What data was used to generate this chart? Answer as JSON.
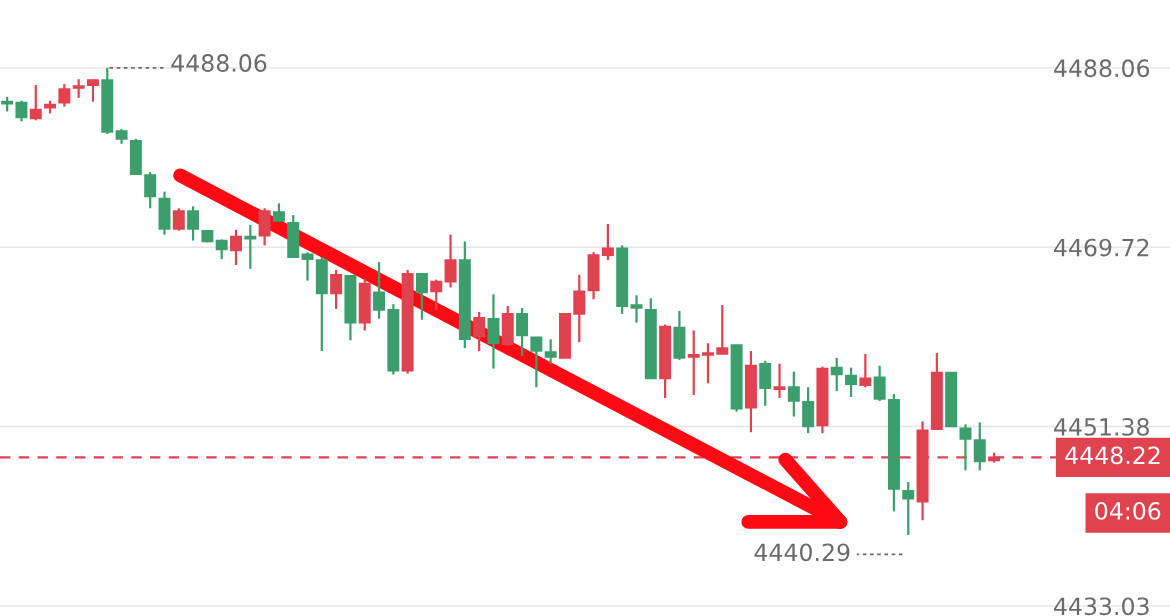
{
  "chart_data": {
    "type": "candlestick",
    "categories": [
      null,
      null,
      null,
      null,
      null,
      null,
      null,
      null,
      null,
      null,
      null,
      null,
      null,
      null,
      null,
      null,
      null,
      null,
      null,
      null,
      null,
      null,
      null,
      null,
      null,
      null,
      null,
      null,
      null,
      null,
      null,
      null,
      null,
      null,
      null,
      null,
      null,
      null,
      null,
      null,
      null,
      null,
      null,
      null,
      null,
      null,
      null,
      null,
      null,
      null,
      null,
      null,
      null,
      null,
      null,
      null,
      null,
      null,
      null,
      null,
      null,
      null,
      null,
      null,
      null,
      null,
      null,
      null,
      null,
      null
    ],
    "ohlc": [
      [
        4484.6,
        4485.1,
        4483.6,
        4484.4
      ],
      [
        4484.5,
        4484.7,
        4482.6,
        4483.0
      ],
      [
        4482.9,
        4486.3,
        4482.7,
        4483.8
      ],
      [
        4484.0,
        4484.7,
        4483.4,
        4484.3
      ],
      [
        4484.5,
        4486.4,
        4484.1,
        4485.9
      ],
      [
        4486.0,
        4486.9,
        4485.0,
        4486.2
      ],
      [
        4486.3,
        4486.8,
        4484.6,
        4486.8
      ],
      [
        4486.8,
        4488.06,
        4481.3,
        4481.5
      ],
      [
        4481.6,
        4481.8,
        4480.3,
        4480.8
      ],
      [
        4480.6,
        4480.8,
        4477.2,
        4477.2
      ],
      [
        4477.1,
        4477.4,
        4473.7,
        4474.9
      ],
      [
        4474.7,
        4475.4,
        4471.0,
        4471.6
      ],
      [
        4471.6,
        4473.7,
        4471.4,
        4473.4
      ],
      [
        4473.4,
        4473.9,
        4470.4,
        4471.6
      ],
      [
        4471.4,
        4471.4,
        4470.2,
        4470.3
      ],
      [
        4470.4,
        4470.5,
        4468.5,
        4469.5
      ],
      [
        4469.4,
        4471.5,
        4467.9,
        4470.8
      ],
      [
        4470.8,
        4472.0,
        4467.5,
        4470.6
      ],
      [
        4470.9,
        4473.7,
        4469.9,
        4473.4
      ],
      [
        4473.3,
        4474.2,
        4472.4,
        4472.4
      ],
      [
        4472.2,
        4473.0,
        4468.7,
        4468.7
      ],
      [
        4469.0,
        4469.2,
        4466.3,
        4468.5
      ],
      [
        4468.4,
        4468.7,
        4459.1,
        4465.0
      ],
      [
        4465.0,
        4467.4,
        4463.4,
        4466.9
      ],
      [
        4466.8,
        4466.8,
        4460.2,
        4462.0
      ],
      [
        4462.0,
        4466.5,
        4461.2,
        4466.0
      ],
      [
        4465.1,
        4468.2,
        4462.4,
        4463.3
      ],
      [
        4463.3,
        4463.9,
        4456.7,
        4457.1
      ],
      [
        4457.1,
        4467.4,
        4456.8,
        4467.0
      ],
      [
        4467.0,
        4467.0,
        4462.3,
        4465.1
      ],
      [
        4465.2,
        4466.4,
        4463.3,
        4466.2
      ],
      [
        4466.2,
        4471.0,
        4465.6,
        4468.4
      ],
      [
        4468.4,
        4470.3,
        4459.4,
        4460.3
      ],
      [
        4460.6,
        4463.1,
        4459.1,
        4462.5
      ],
      [
        4462.4,
        4464.9,
        4457.3,
        4459.9
      ],
      [
        4459.8,
        4463.7,
        4459.6,
        4462.9
      ],
      [
        4462.9,
        4463.5,
        4458.6,
        4460.7
      ],
      [
        4460.5,
        4460.5,
        4455.4,
        4459.1
      ],
      [
        4459.0,
        4460.3,
        4457.8,
        4458.5
      ],
      [
        4458.4,
        4462.9,
        4458.4,
        4462.9
      ],
      [
        4462.9,
        4466.9,
        4460.0,
        4465.2
      ],
      [
        4465.3,
        4469.2,
        4464.4,
        4468.9
      ],
      [
        4468.9,
        4472.1,
        4468.4,
        4469.6
      ],
      [
        4469.6,
        4469.9,
        4462.9,
        4463.7
      ],
      [
        4463.8,
        4464.8,
        4462.0,
        4463.5
      ],
      [
        4463.3,
        4464.5,
        4456.3,
        4456.3
      ],
      [
        4456.3,
        4461.8,
        4454.3,
        4461.6
      ],
      [
        4461.5,
        4463.2,
        4458.2,
        4458.4
      ],
      [
        4458.5,
        4461.2,
        4454.6,
        4458.7
      ],
      [
        4458.7,
        4459.9,
        4455.8,
        4458.9
      ],
      [
        4458.8,
        4463.8,
        4458.8,
        4459.4
      ],
      [
        4459.7,
        4459.7,
        4452.9,
        4453.2
      ],
      [
        4453.3,
        4459.1,
        4450.8,
        4457.6
      ],
      [
        4457.8,
        4458.1,
        4453.5,
        4455.3
      ],
      [
        4455.2,
        4457.8,
        4454.3,
        4455.4
      ],
      [
        4455.4,
        4457.0,
        4452.4,
        4454.0
      ],
      [
        4453.9,
        4455.4,
        4450.7,
        4451.4
      ],
      [
        4451.5,
        4457.5,
        4450.7,
        4457.3
      ],
      [
        4457.4,
        4458.4,
        4455.0,
        4456.7
      ],
      [
        4456.6,
        4457.4,
        4454.4,
        4455.7
      ],
      [
        4455.6,
        4458.8,
        4455.4,
        4456.3
      ],
      [
        4456.4,
        4457.6,
        4454.0,
        4454.2
      ],
      [
        4454.1,
        4454.7,
        4442.7,
        4445.0
      ],
      [
        4444.8,
        4445.7,
        4440.29,
        4444.0
      ],
      [
        4443.7,
        4451.9,
        4441.8,
        4451.0
      ],
      [
        4451.1,
        4458.9,
        4451.1,
        4456.9
      ],
      [
        4456.9,
        4456.9,
        4451.4,
        4451.4
      ],
      [
        4451.2,
        4451.6,
        4446.9,
        4450.1
      ],
      [
        4450.0,
        4451.8,
        4446.9,
        4447.8
      ],
      [
        4447.9,
        4448.7,
        4447.7,
        4448.22
      ]
    ],
    "colors": [
      "#3c9e6c",
      "#3c9e6c",
      "#e0424f",
      "#e0424f",
      "#e0424f",
      "#e0424f",
      "#e0424f",
      "#3c9e6c",
      "#3c9e6c",
      "#3c9e6c",
      "#3c9e6c",
      "#3c9e6c",
      "#e0424f",
      "#3c9e6c",
      "#3c9e6c",
      "#3c9e6c",
      "#e0424f",
      "#3c9e6c",
      "#e0424f",
      "#3c9e6c",
      "#3c9e6c",
      "#3c9e6c",
      "#3c9e6c",
      "#e0424f",
      "#3c9e6c",
      "#e0424f",
      "#3c9e6c",
      "#3c9e6c",
      "#e0424f",
      "#3c9e6c",
      "#e0424f",
      "#e0424f",
      "#3c9e6c",
      "#e0424f",
      "#3c9e6c",
      "#e0424f",
      "#3c9e6c",
      "#3c9e6c",
      "#3c9e6c",
      "#e0424f",
      "#e0424f",
      "#e0424f",
      "#e0424f",
      "#3c9e6c",
      "#3c9e6c",
      "#3c9e6c",
      "#e0424f",
      "#3c9e6c",
      "#e0424f",
      "#e0424f",
      "#e0424f",
      "#3c9e6c",
      "#e0424f",
      "#3c9e6c",
      "#e0424f",
      "#3c9e6c",
      "#3c9e6c",
      "#e0424f",
      "#3c9e6c",
      "#3c9e6c",
      "#e0424f",
      "#3c9e6c",
      "#3c9e6c",
      "#3c9e6c",
      "#e0424f",
      "#e0424f",
      "#3c9e6c",
      "#3c9e6c",
      "#3c9e6c",
      "#e0424f"
    ],
    "ylim": [
      4432.0,
      4495.0
    ],
    "yticks": [
      4488.06,
      4469.72,
      4451.38,
      4433.03
    ],
    "tick_labels": "y",
    "grid": "y",
    "ref_lines": [
      {
        "axis": "y",
        "value": 4448.22,
        "label": "4448.22",
        "color": "#e0424f",
        "line_style": "dashed"
      }
    ],
    "annotations": [
      "4488.06",
      "4440.29",
      "04:06"
    ]
  }
}
